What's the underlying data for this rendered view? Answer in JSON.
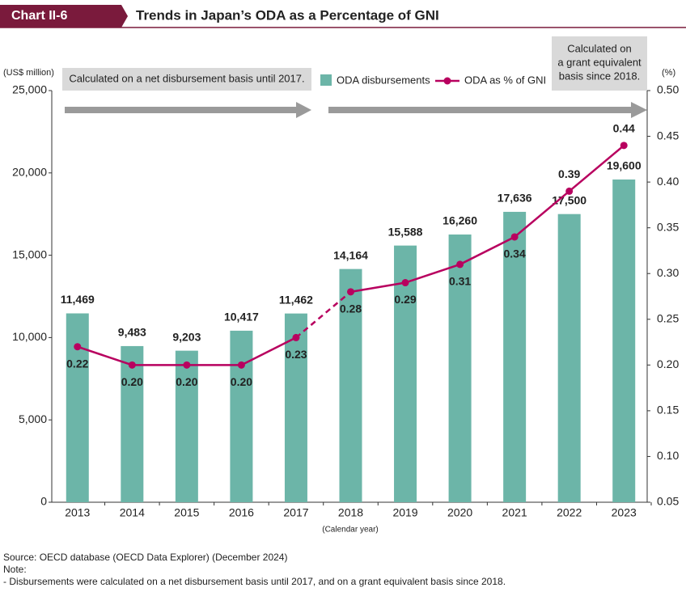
{
  "chart_data": {
    "type": "bar",
    "chart_number": "Chart II-6",
    "title": "Trends in Japan’s ODA as a Percentage of GNI",
    "y_label": "(US$ million)",
    "y2_label": "(%)",
    "x_label": "(Calendar year)",
    "annotations": [
      {
        "lines": [
          "Calculated on a net disbursement basis until 2017."
        ]
      },
      {
        "lines": [
          "Calculated on",
          "a grant equivalent",
          "basis since 2018."
        ]
      }
    ],
    "categories": [
      "2013",
      "2014",
      "2015",
      "2016",
      "2017",
      "2018",
      "2019",
      "2020",
      "2021",
      "2022",
      "2023"
    ],
    "series": [
      {
        "name": "ODA disbursements",
        "type": "bar",
        "color": "#6cb5a8",
        "values": [
          11469,
          9483,
          9203,
          10417,
          11462,
          14164,
          15588,
          16260,
          17636,
          17500,
          19600
        ],
        "value_labels": [
          "11,469",
          "9,483",
          "9,203",
          "10,417",
          "11,462",
          "14,164",
          "15,588",
          "16,260",
          "17,636",
          "17,500",
          "19,600"
        ]
      },
      {
        "name": "ODA as % of GNI",
        "type": "line",
        "axis": "y2",
        "color": "#b8005f",
        "values": [
          0.22,
          0.2,
          0.2,
          0.2,
          0.23,
          0.28,
          0.29,
          0.31,
          0.34,
          0.39,
          0.44
        ],
        "value_labels": [
          "0.22",
          "0.20",
          "0.20",
          "0.20",
          "0.23",
          "0.28",
          "0.29",
          "0.31",
          "0.34",
          "0.39",
          "0.44"
        ],
        "dashed_segment": [
          "2017",
          "2018"
        ]
      }
    ],
    "ylim": [
      0,
      25000
    ],
    "yticks": [
      {
        "value": 0,
        "label": "0"
      },
      {
        "value": 5000,
        "label": "5,000"
      },
      {
        "value": 10000,
        "label": "10,000"
      },
      {
        "value": 15000,
        "label": "15,000"
      },
      {
        "value": 20000,
        "label": "20,000"
      },
      {
        "value": 25000,
        "label": "25,000"
      }
    ],
    "y2lim": [
      0.05,
      0.5
    ],
    "y2ticks": [
      0.05,
      {
        "value": 0.1,
        "label": "0.10"
      },
      0.15,
      {
        "value": 0.2,
        "label": "0.20"
      },
      0.25,
      {
        "value": 0.3,
        "label": "0.30"
      },
      0.35,
      {
        "value": 0.4,
        "label": "0.40"
      },
      0.45,
      {
        "value": 0.5,
        "label": "0.50"
      }
    ],
    "grid": false,
    "source": "Source: OECD database (OECD Data Explorer) (December 2024)",
    "note_heading": "Note:",
    "note": "- Disbursements were calculated on a net disbursement basis until 2017, and on a grant equivalent basis since 2018."
  }
}
